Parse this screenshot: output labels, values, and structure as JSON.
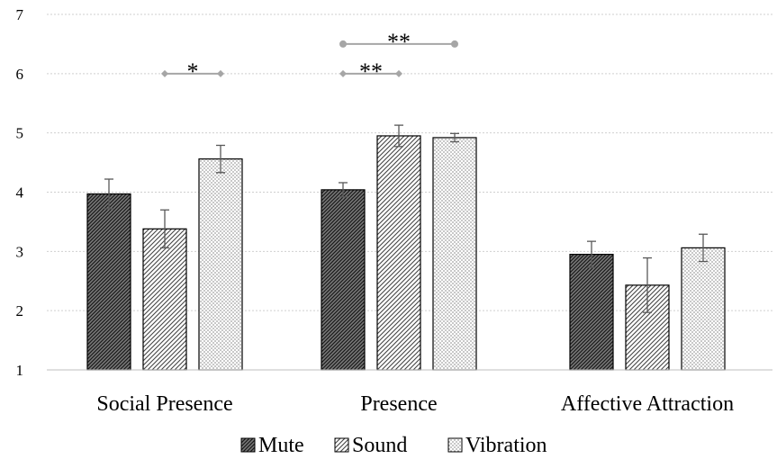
{
  "chart_data": {
    "type": "bar",
    "categories": [
      "Social Presence",
      "Presence",
      "Affective Attraction"
    ],
    "series": [
      {
        "name": "Mute",
        "values": [
          3.97,
          4.04,
          2.95
        ],
        "errors": [
          0.25,
          0.12,
          0.22
        ],
        "pattern": "dense-hatch"
      },
      {
        "name": "Sound",
        "values": [
          3.38,
          4.95,
          2.43
        ],
        "errors": [
          0.32,
          0.18,
          0.46
        ],
        "pattern": "diagonal-hatch"
      },
      {
        "name": "Vibration",
        "values": [
          4.56,
          4.92,
          3.06
        ],
        "errors": [
          0.23,
          0.07,
          0.23
        ],
        "pattern": "dots"
      }
    ],
    "y_ticks": [
      "1",
      "2",
      "3",
      "4",
      "5",
      "6",
      "7"
    ],
    "ylim": [
      1,
      7
    ],
    "grid": true,
    "legend": "bottom",
    "significance": [
      {
        "category": "Social Presence",
        "from": "Sound",
        "to": "Vibration",
        "y": 6.0,
        "label": "*"
      },
      {
        "category": "Presence",
        "from": "Mute",
        "to": "Sound",
        "y": 6.0,
        "label": "**"
      },
      {
        "category": "Presence",
        "from": "Mute",
        "to": "Vibration",
        "y": 6.5,
        "label": "**"
      }
    ],
    "colors": {
      "grid": "#cfcfcf",
      "bar_stroke": "#000000",
      "bracket": "#a6a6a6",
      "error_bar": "#595959"
    }
  }
}
